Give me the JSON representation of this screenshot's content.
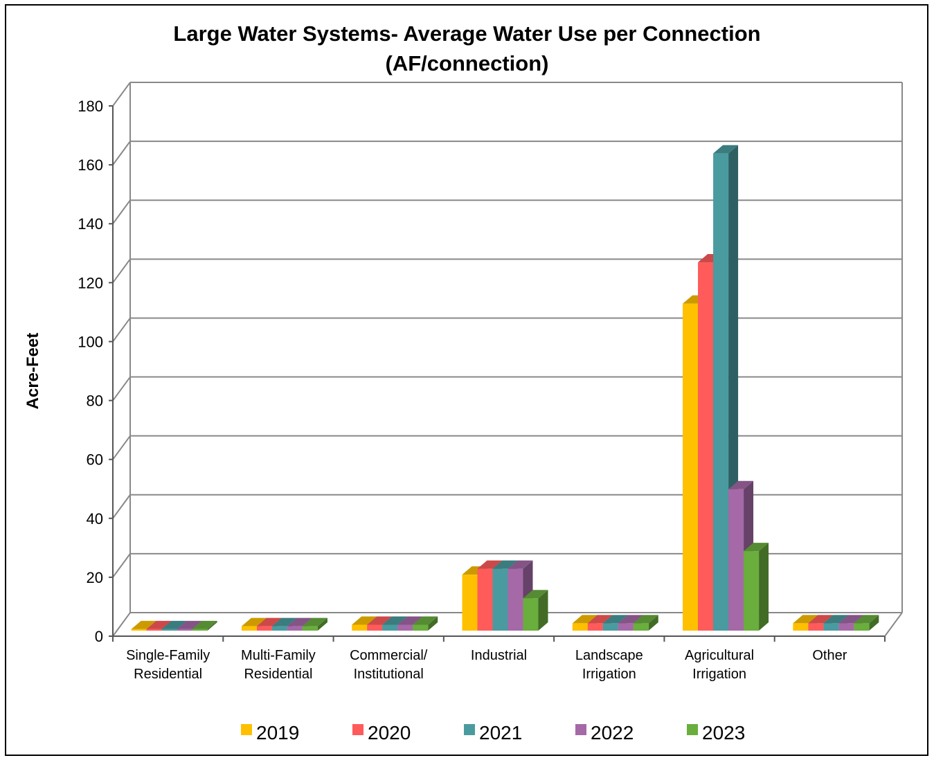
{
  "chart_data": {
    "type": "bar",
    "title": "Large Water Systems- Average Water Use per Connection",
    "subtitle": "(AF/connection)",
    "ylabel": "Acre-Feet",
    "xlabel": "",
    "ylim": [
      0,
      180
    ],
    "yticks": [
      "0",
      "20",
      "40",
      "60",
      "80",
      "100",
      "120",
      "140",
      "160",
      "180"
    ],
    "grid": true,
    "legend_position": "bottom",
    "three_d": true,
    "categories": [
      [
        "Single-Family",
        "Residential"
      ],
      [
        "Multi-Family",
        "Residential"
      ],
      [
        "Commercial/",
        "Institutional"
      ],
      [
        "Industrial"
      ],
      [
        "Landscape",
        "Irrigation"
      ],
      [
        "Agricultural",
        "Irrigation"
      ],
      [
        "Other"
      ]
    ],
    "series": [
      {
        "name": "2019",
        "color": "#FFC000",
        "values": [
          0.5,
          1.5,
          2,
          19,
          2.5,
          111,
          2.5
        ]
      },
      {
        "name": "2020",
        "color": "#FF5B5B",
        "values": [
          0.5,
          1.5,
          2,
          21,
          2.5,
          125,
          2.5
        ]
      },
      {
        "name": "2021",
        "color": "#4A9B9F",
        "values": [
          0.5,
          1.5,
          2,
          21,
          2.5,
          162,
          2.5
        ]
      },
      {
        "name": "2022",
        "color": "#A569A7",
        "values": [
          0.5,
          1.5,
          2,
          21,
          2.5,
          48,
          2.5
        ]
      },
      {
        "name": "2023",
        "color": "#6AAE3E",
        "values": [
          0.5,
          1.5,
          2,
          11,
          2.5,
          27,
          2.5
        ]
      }
    ]
  }
}
